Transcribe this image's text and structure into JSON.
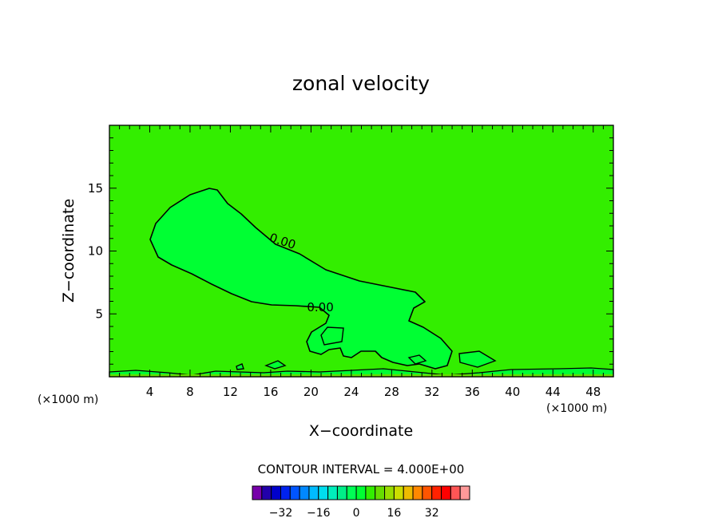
{
  "chart_data": {
    "type": "contour",
    "title": "zonal velocity",
    "xlabel": "X−coordinate",
    "ylabel": "Z−coordinate",
    "x_unit_left": "(×1000 m)",
    "x_unit_right": "(×1000 m)",
    "xlim": [
      0,
      50
    ],
    "ylim": [
      0,
      20
    ],
    "x_ticks": [
      4,
      8,
      12,
      16,
      20,
      24,
      28,
      32,
      36,
      40,
      44,
      48
    ],
    "y_ticks": [
      5,
      10,
      15
    ],
    "contour_labels": [
      {
        "text": "0.00",
        "x": 15.8,
        "y": 10.8
      },
      {
        "text": "0.00",
        "x": 19.6,
        "y": 5.2
      }
    ],
    "background_color": "#33ee00",
    "zero_region_color": "#00ff33",
    "contour_interval_text": "CONTOUR INTERVAL =  4.000E+00",
    "colorbar": {
      "colors": [
        "#7700aa",
        "#2200aa",
        "#0000cc",
        "#0022ee",
        "#0055ff",
        "#0088ff",
        "#00bbff",
        "#00ddee",
        "#00eebb",
        "#00ee88",
        "#00ff55",
        "#00ff33",
        "#33ee00",
        "#66dd00",
        "#99dd00",
        "#ccdd00",
        "#eebb00",
        "#ff8800",
        "#ff5500",
        "#ff2200",
        "#ff0000",
        "#ff5555",
        "#ff9999"
      ],
      "tick_labels": [
        "−32",
        "−16",
        "0",
        "16",
        "32"
      ],
      "tick_values": [
        -32,
        -16,
        0,
        16,
        32
      ],
      "min": -44,
      "max": 48
    }
  }
}
